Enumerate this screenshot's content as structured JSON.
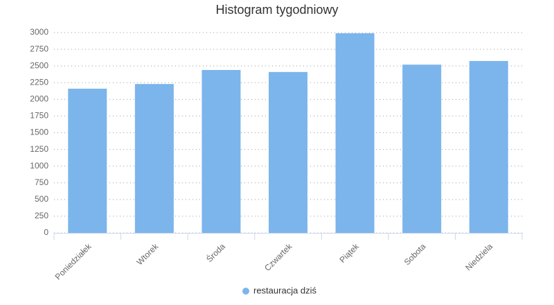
{
  "chart_data": {
    "type": "bar",
    "title": "Histogram tygodniowy",
    "categories": [
      "Poniedziałek",
      "Wtorek",
      "Środa",
      "Czwartek",
      "Piątek",
      "Sobota",
      "Niedziela"
    ],
    "series": [
      {
        "name": "restauracja dziś",
        "color": "#7cb5ec",
        "values": [
          2160,
          2230,
          2440,
          2410,
          2990,
          2520,
          2575
        ]
      }
    ],
    "ylim": [
      0,
      3000
    ],
    "yticks": [
      0,
      250,
      500,
      750,
      1000,
      1250,
      1500,
      1750,
      2000,
      2250,
      2500,
      2750,
      3000
    ],
    "grid": true,
    "legend": "bottom"
  }
}
